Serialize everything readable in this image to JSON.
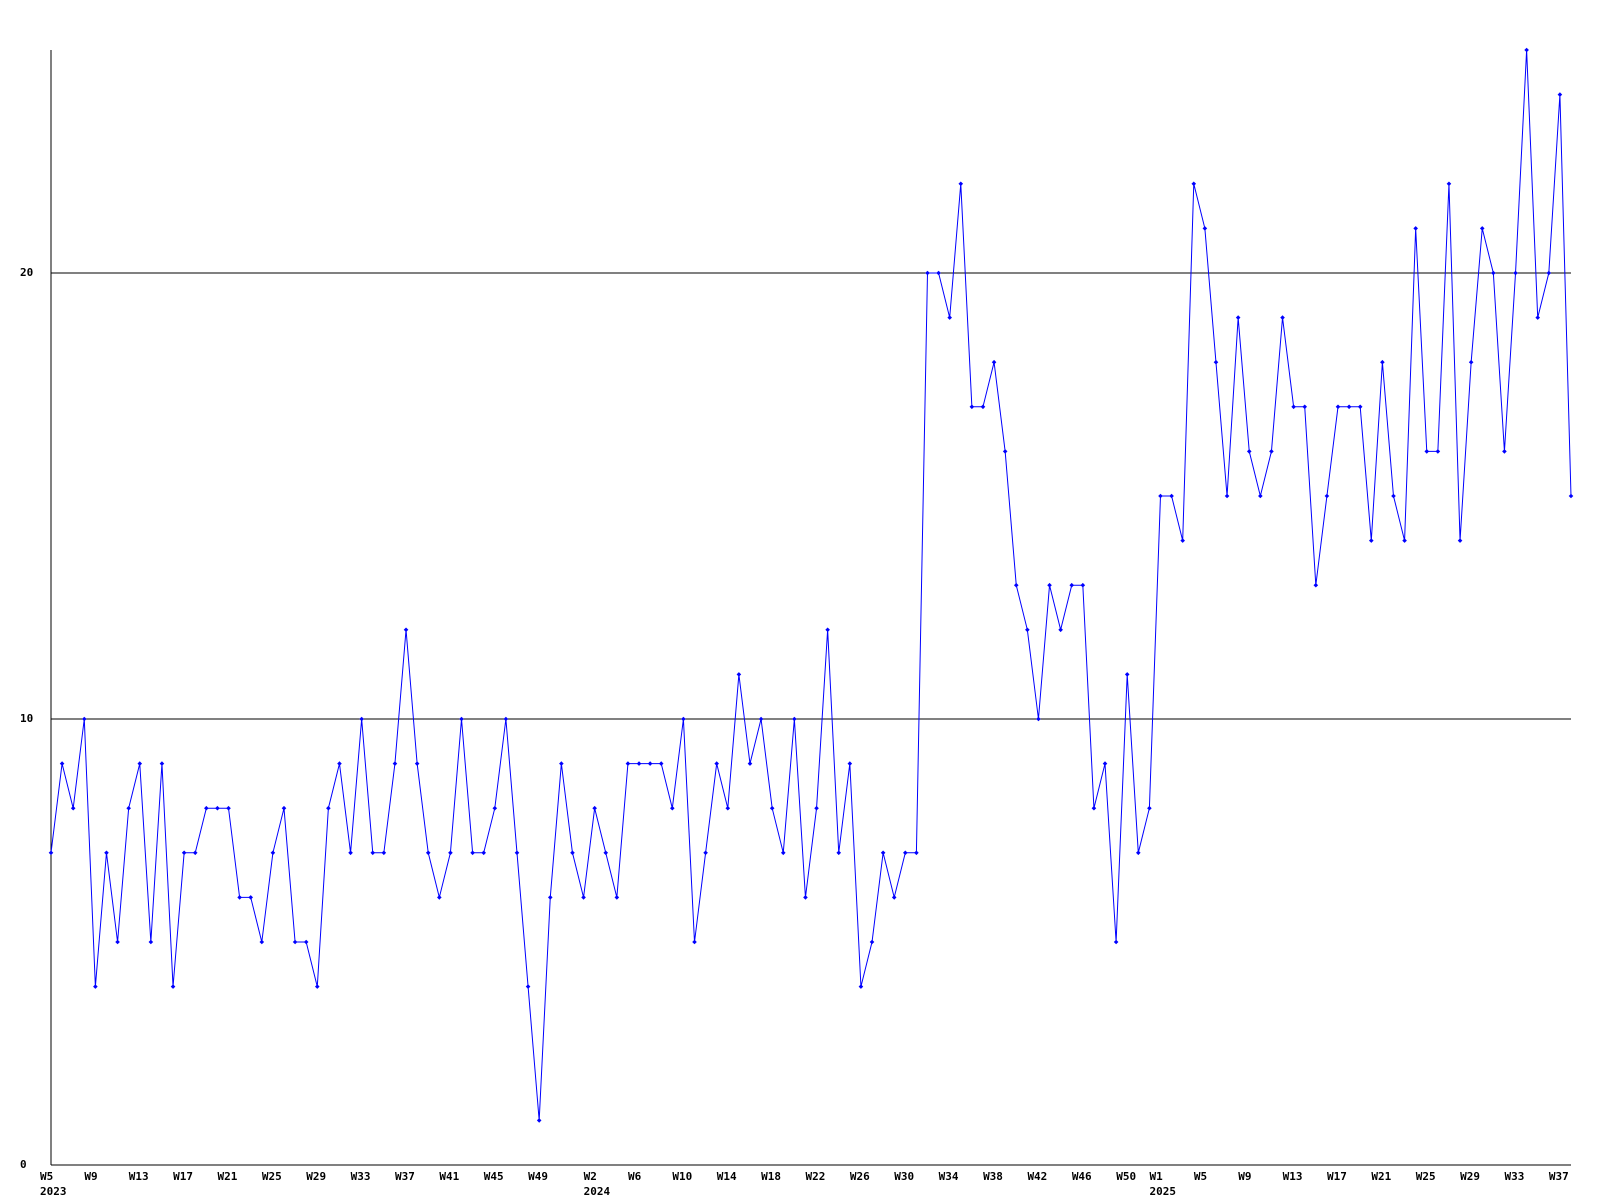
{
  "chart_data": {
    "type": "line",
    "categories": [
      "W5",
      null,
      null,
      null,
      "W9",
      null,
      null,
      null,
      "W13",
      null,
      null,
      null,
      "W17",
      null,
      null,
      null,
      "W21",
      null,
      null,
      null,
      "W25",
      null,
      null,
      null,
      "W29",
      null,
      null,
      null,
      "W33",
      null,
      null,
      null,
      "W37",
      null,
      null,
      null,
      "W41",
      null,
      null,
      null,
      "W45",
      null,
      null,
      null,
      "W49",
      null,
      null,
      null,
      null,
      "W2",
      null,
      null,
      null,
      "W6",
      null,
      null,
      null,
      "W10",
      null,
      null,
      null,
      "W14",
      null,
      null,
      null,
      "W18",
      null,
      null,
      null,
      "W22",
      null,
      null,
      null,
      "W26",
      null,
      null,
      null,
      "W30",
      null,
      null,
      null,
      "W34",
      null,
      null,
      null,
      "W38",
      null,
      null,
      null,
      "W42",
      null,
      null,
      null,
      "W46",
      null,
      null,
      null,
      "W50",
      null,
      null,
      "W1",
      null,
      null,
      null,
      "W5",
      null,
      null,
      null,
      "W9",
      null,
      null,
      null,
      "W13",
      null,
      null,
      null,
      "W17",
      null,
      null,
      null,
      "W21",
      null,
      null,
      null,
      "W25",
      null,
      null,
      null,
      "W29",
      null,
      null,
      null,
      "W33",
      null,
      null,
      null,
      "W37",
      null
    ],
    "years": [
      "2023",
      null,
      null,
      null,
      null,
      null,
      null,
      null,
      null,
      null,
      null,
      null,
      null,
      null,
      null,
      null,
      null,
      null,
      null,
      null,
      null,
      null,
      null,
      null,
      null,
      null,
      null,
      null,
      null,
      null,
      null,
      null,
      null,
      null,
      null,
      null,
      null,
      null,
      null,
      null,
      null,
      null,
      null,
      null,
      null,
      null,
      null,
      null,
      null,
      "2024",
      null,
      null,
      null,
      null,
      null,
      null,
      null,
      null,
      null,
      null,
      null,
      null,
      null,
      null,
      null,
      null,
      null,
      null,
      null,
      null,
      null,
      null,
      null,
      null,
      null,
      null,
      null,
      null,
      null,
      null,
      null,
      null,
      null,
      null,
      null,
      null,
      null,
      null,
      null,
      null,
      null,
      null,
      null,
      null,
      null,
      null,
      null,
      null,
      null,
      null,
      "2025",
      null,
      null,
      null,
      null,
      null,
      null,
      null,
      null,
      null,
      null,
      null,
      null,
      null,
      null,
      null,
      null,
      null,
      null,
      null,
      null,
      null,
      null,
      null,
      null,
      null,
      null,
      null,
      null,
      null,
      null,
      null,
      null,
      null,
      null,
      null,
      null,
      null
    ],
    "values": [
      7,
      9,
      8,
      10,
      4,
      7,
      5,
      8,
      9,
      5,
      9,
      4,
      7,
      7,
      8,
      8,
      8,
      6,
      6,
      5,
      7,
      8,
      5,
      5,
      4,
      8,
      9,
      7,
      10,
      7,
      7,
      9,
      12,
      9,
      7,
      6,
      7,
      10,
      7,
      7,
      8,
      10,
      7,
      4,
      1,
      6,
      9,
      7,
      6,
      8,
      7,
      6,
      9,
      9,
      9,
      9,
      8,
      10,
      5,
      7,
      9,
      8,
      11,
      9,
      10,
      8,
      7,
      10,
      6,
      8,
      12,
      7,
      9,
      4,
      5,
      7,
      6,
      7,
      7,
      20,
      20,
      19,
      22,
      17,
      17,
      18,
      16,
      13,
      12,
      10,
      13,
      12,
      13,
      13,
      8,
      9,
      5,
      11,
      7,
      8,
      15,
      15,
      14,
      22,
      21,
      18,
      15,
      19,
      16,
      15,
      16,
      19,
      17,
      17,
      13,
      15,
      17,
      17,
      17,
      14,
      18,
      15,
      14,
      21,
      16,
      16,
      22,
      14,
      18,
      21,
      20,
      16,
      20,
      25,
      19,
      20,
      24,
      15
    ],
    "color": "#0000ff",
    "ylim": [
      0,
      25
    ],
    "yticks": [
      0,
      10,
      20
    ],
    "grid": true
  }
}
